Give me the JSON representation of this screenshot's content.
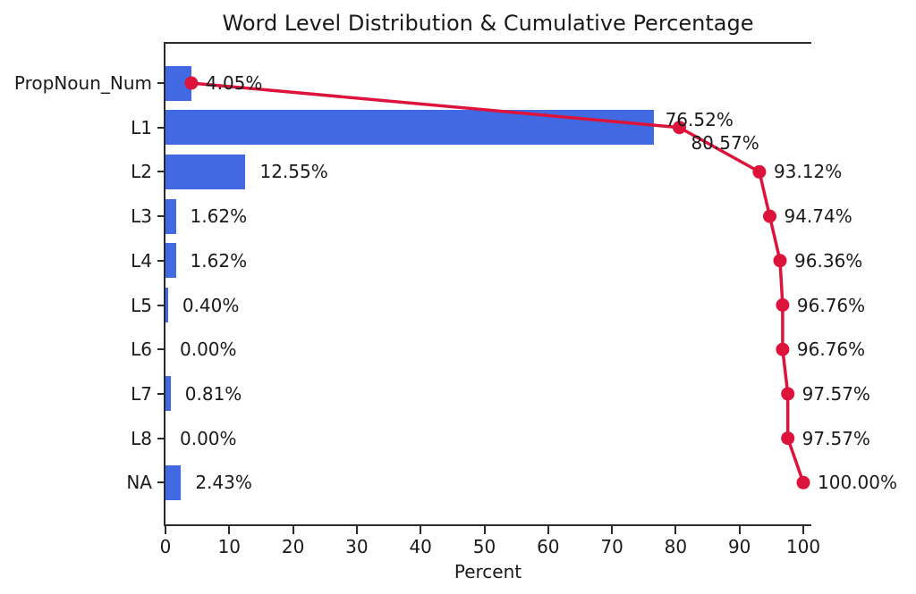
{
  "chart_data": {
    "type": "bar",
    "orientation": "horizontal",
    "title": "Word Level Distribution & Cumulative Percentage",
    "xlabel": "Percent",
    "ylabel": "",
    "categories": [
      "PropNoun_Num",
      "L1",
      "L2",
      "L3",
      "L4",
      "L5",
      "L6",
      "L7",
      "L8",
      "NA"
    ],
    "series": [
      {
        "name": "Word Level Distribution",
        "type": "bar",
        "color": "#4169E1",
        "values": [
          4.05,
          76.52,
          12.55,
          1.62,
          1.62,
          0.4,
          0.0,
          0.81,
          0.0,
          2.43
        ],
        "labels": [
          "4.05%",
          "76.52%",
          "12.55%",
          "1.62%",
          "1.62%",
          "0.40%",
          "0.00%",
          "0.81%",
          "0.00%",
          "2.43%"
        ]
      },
      {
        "name": "Cumulative Percentage",
        "type": "line",
        "color": "#DC143C",
        "values": [
          4.05,
          80.57,
          93.12,
          94.74,
          96.36,
          96.76,
          96.76,
          97.57,
          97.57,
          100.0
        ],
        "labels": [
          "4.05%",
          "80.57%",
          "93.12%",
          "94.74%",
          "96.36%",
          "96.76%",
          "96.76%",
          "97.57%",
          "97.57%",
          "100.00%"
        ]
      }
    ],
    "x_ticks": [
      0,
      10,
      20,
      30,
      40,
      50,
      60,
      70,
      80,
      90,
      100
    ],
    "x_tick_labels": [
      "0",
      "10",
      "20",
      "30",
      "40",
      "50",
      "60",
      "70",
      "80",
      "90",
      "100"
    ],
    "xlim": [
      0,
      101.1
    ],
    "grid": false,
    "legend": "none",
    "label_layout": {
      "cum_label_skip": [
        0
      ],
      "cum_label_offsets": {
        "1": {
          "dx": 13,
          "dy": 17
        }
      },
      "bar_label_offsets": {
        "1": {
          "dx": 13,
          "dy": -9
        }
      }
    }
  },
  "colors": {
    "bar": "#4169E1",
    "line": "#DC143C",
    "text": "#1a1a1a",
    "spine": "#2b2b2b",
    "background": "#ffffff"
  }
}
